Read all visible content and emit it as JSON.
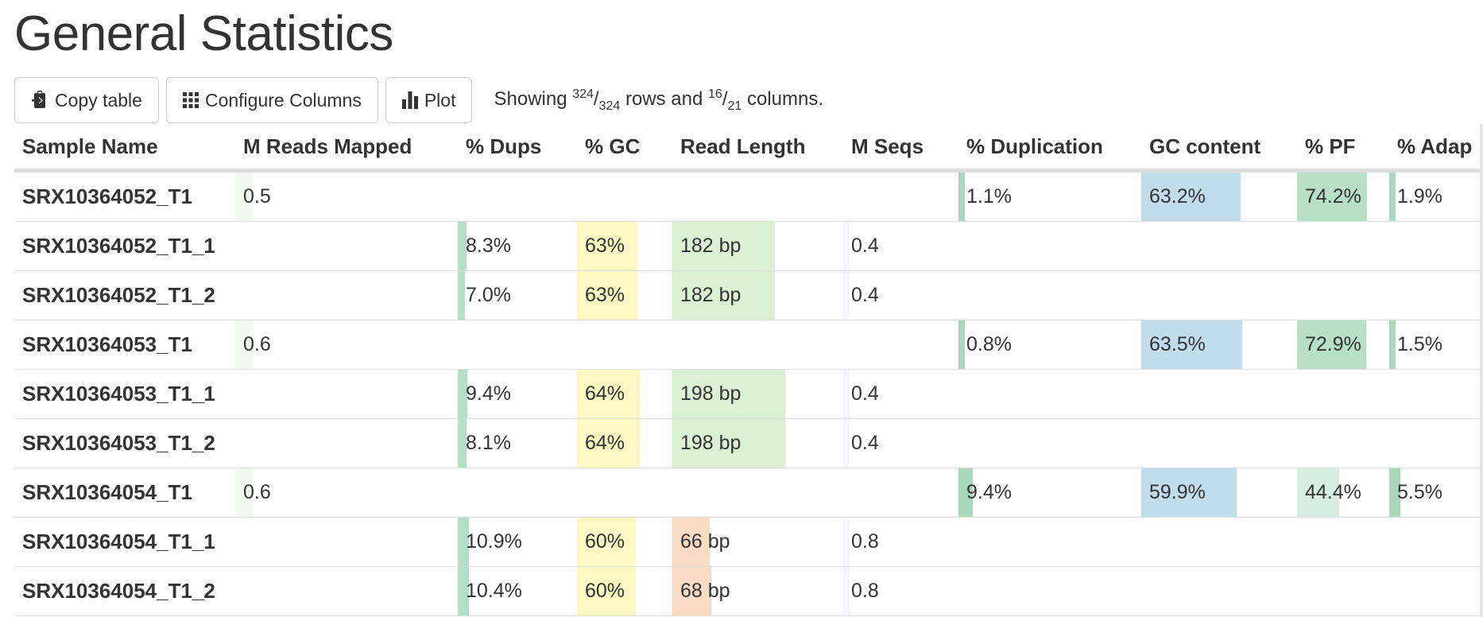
{
  "page": {
    "title": "General Statistics"
  },
  "toolbar": {
    "copy_label": "Copy table",
    "configure_label": "Configure Columns",
    "plot_label": "Plot",
    "showing_prefix": "Showing",
    "rows_shown": "324",
    "rows_total": "324",
    "rows_word": "rows and",
    "cols_shown": "16",
    "cols_total": "21",
    "cols_word": "columns."
  },
  "icons": {
    "copy": "clipboard-icon",
    "configure": "grid-icon",
    "plot": "bar-chart-icon"
  },
  "table": {
    "headers": [
      "Sample Name",
      "M Reads Mapped",
      "% Dups",
      "% GC",
      "Read Length",
      "M Seqs",
      "% Duplication",
      "GC content",
      "% PF",
      "% Adap"
    ],
    "bar_colors": {
      "reads_mapped": "#f1f8ef",
      "dups": "#b3dfc6",
      "gc": "#fbf8c4",
      "read_length_high": "#dcf0d4",
      "read_length_low": "#fadbc4",
      "mseqs": "#f3f7fc",
      "duplication": "#a9d8bc",
      "gc_content": "#c3dcec",
      "pf_high": "#b8e0c6",
      "pf_low": "#d6eee2",
      "adapter": "#a9d8bc"
    },
    "rows": [
      {
        "name": "SRX10364052_T1",
        "reads_mapped": {
          "text": "0.5",
          "fill": 0.08
        },
        "dups": null,
        "gc": null,
        "read_length": null,
        "mseqs": null,
        "duplication": {
          "text": "1.1%",
          "fill": 0.01
        },
        "gc_content": {
          "text": "63.2%",
          "fill": 0.64
        },
        "pf": {
          "text": "74.2%",
          "fill": 0.76,
          "tone": "high"
        },
        "adapter": {
          "text": "1.9%",
          "fill": 0.03
        }
      },
      {
        "name": "SRX10364052_T1_1",
        "reads_mapped": null,
        "dups": {
          "text": "8.3%",
          "fill": 0.07
        },
        "gc": {
          "text": "63%",
          "fill": 0.63
        },
        "read_length": {
          "text": "182 bp",
          "fill": 0.6,
          "tone": "high"
        },
        "mseqs": {
          "text": "0.4",
          "fill": 0.02
        },
        "duplication": null,
        "gc_content": null,
        "pf": null,
        "adapter": null
      },
      {
        "name": "SRX10364052_T1_2",
        "reads_mapped": null,
        "dups": {
          "text": "7.0%",
          "fill": 0.06
        },
        "gc": {
          "text": "63%",
          "fill": 0.63
        },
        "read_length": {
          "text": "182 bp",
          "fill": 0.6,
          "tone": "high"
        },
        "mseqs": {
          "text": "0.4",
          "fill": 0.02
        },
        "duplication": null,
        "gc_content": null,
        "pf": null,
        "adapter": null
      },
      {
        "name": "SRX10364053_T1",
        "reads_mapped": {
          "text": "0.6",
          "fill": 0.08
        },
        "dups": null,
        "gc": null,
        "read_length": null,
        "mseqs": null,
        "duplication": {
          "text": "0.8%",
          "fill": 0.01
        },
        "gc_content": {
          "text": "63.5%",
          "fill": 0.65
        },
        "pf": {
          "text": "72.9%",
          "fill": 0.75,
          "tone": "high"
        },
        "adapter": {
          "text": "1.5%",
          "fill": 0.02
        }
      },
      {
        "name": "SRX10364053_T1_1",
        "reads_mapped": null,
        "dups": {
          "text": "9.4%",
          "fill": 0.08
        },
        "gc": {
          "text": "64%",
          "fill": 0.66
        },
        "read_length": {
          "text": "198 bp",
          "fill": 0.66,
          "tone": "high"
        },
        "mseqs": {
          "text": "0.4",
          "fill": 0.02
        },
        "duplication": null,
        "gc_content": null,
        "pf": null,
        "adapter": null
      },
      {
        "name": "SRX10364053_T1_2",
        "reads_mapped": null,
        "dups": {
          "text": "8.1%",
          "fill": 0.07
        },
        "gc": {
          "text": "64%",
          "fill": 0.66
        },
        "read_length": {
          "text": "198 bp",
          "fill": 0.66,
          "tone": "high"
        },
        "mseqs": {
          "text": "0.4",
          "fill": 0.02
        },
        "duplication": null,
        "gc_content": null,
        "pf": null,
        "adapter": null
      },
      {
        "name": "SRX10364054_T1",
        "reads_mapped": {
          "text": "0.6",
          "fill": 0.08
        },
        "dups": null,
        "gc": null,
        "read_length": null,
        "mseqs": null,
        "duplication": {
          "text": "9.4%",
          "fill": 0.08
        },
        "gc_content": {
          "text": "59.9%",
          "fill": 0.61
        },
        "pf": {
          "text": "44.4%",
          "fill": 0.46,
          "tone": "low"
        },
        "adapter": {
          "text": "5.5%",
          "fill": 0.08
        }
      },
      {
        "name": "SRX10364054_T1_1",
        "reads_mapped": null,
        "dups": {
          "text": "10.9%",
          "fill": 0.09
        },
        "gc": {
          "text": "60%",
          "fill": 0.62
        },
        "read_length": {
          "text": "66 bp",
          "fill": 0.22,
          "tone": "low"
        },
        "mseqs": {
          "text": "0.8",
          "fill": 0.04
        },
        "duplication": null,
        "gc_content": null,
        "pf": null,
        "adapter": null
      },
      {
        "name": "SRX10364054_T1_2",
        "reads_mapped": null,
        "dups": {
          "text": "10.4%",
          "fill": 0.09
        },
        "gc": {
          "text": "60%",
          "fill": 0.62
        },
        "read_length": {
          "text": "68 bp",
          "fill": 0.23,
          "tone": "low"
        },
        "mseqs": {
          "text": "0.8",
          "fill": 0.04
        },
        "duplication": null,
        "gc_content": null,
        "pf": null,
        "adapter": null
      }
    ]
  }
}
